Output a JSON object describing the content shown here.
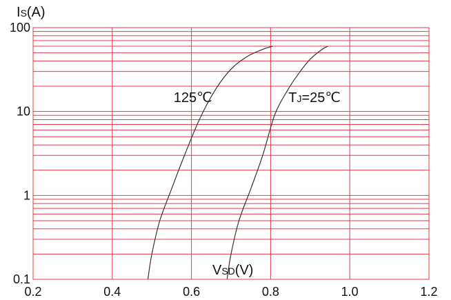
{
  "chart_data": {
    "type": "line",
    "title": "",
    "xlabel": {
      "main": "V",
      "sub": "SD",
      "unit": "(V)"
    },
    "ylabel": {
      "main": "I",
      "sub": "S",
      "unit": "(A)"
    },
    "xlim": [
      0.2,
      1.2
    ],
    "ylim": [
      0.1,
      100
    ],
    "yscale": "log",
    "grid": true,
    "xticks": [
      0.2,
      0.4,
      0.6,
      0.8,
      1.0,
      1.2
    ],
    "xtick_labels": [
      "0.2",
      "0.4",
      "0.6",
      "0.8",
      "1.0",
      "1.2"
    ],
    "yticks": [
      0.1,
      1,
      10,
      100
    ],
    "ytick_labels": [
      "0.1",
      "1",
      "10",
      "100"
    ],
    "series": [
      {
        "name": "125℃",
        "x": [
          0.49,
          0.5,
          0.52,
          0.55,
          0.58,
          0.62,
          0.66,
          0.7,
          0.74,
          0.78,
          0.805
        ],
        "y": [
          0.1,
          0.2,
          0.5,
          1.2,
          2.8,
          8,
          18,
          32,
          45,
          55,
          60
        ]
      },
      {
        "name": "TJ=25℃",
        "x": [
          0.69,
          0.7,
          0.72,
          0.75,
          0.78,
          0.81,
          0.84,
          0.87,
          0.9,
          0.93,
          0.945
        ],
        "y": [
          0.1,
          0.2,
          0.5,
          1.2,
          3,
          9,
          17,
          28,
          42,
          55,
          60
        ]
      }
    ],
    "annotations": [
      {
        "text": "125℃",
        "x": 0.555,
        "y": 13
      },
      {
        "main": "T",
        "sub": "J",
        "rest": "=25℃",
        "x": 0.845,
        "y": 13
      }
    ],
    "colors": {
      "grid": "#e8394a",
      "curve": "#333333",
      "frame": "#e8394a"
    }
  }
}
